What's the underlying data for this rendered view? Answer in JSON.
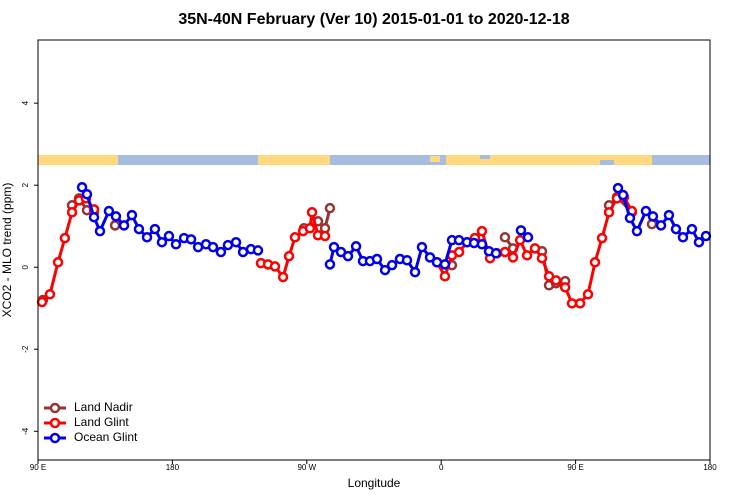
{
  "chart_data": {
    "type": "line",
    "title": "35N-40N February (Ver 10)   2015-01-01 to 2020-12-18",
    "xlabel": "Longitude",
    "ylabel": "XCO2 - MLO trend (ppm)",
    "xlim": [
      90,
      540
    ],
    "ylim": [
      -4.7,
      5.54
    ],
    "xticks": [
      {
        "value": 90,
        "label": "90 E"
      },
      {
        "value": 180,
        "label": "180"
      },
      {
        "value": 270,
        "label": "90 W"
      },
      {
        "value": 360,
        "label": "0"
      },
      {
        "value": 450,
        "label": "90 E"
      },
      {
        "value": 540,
        "label": "180"
      }
    ],
    "yticks": [
      -4,
      -2,
      0,
      2,
      4
    ],
    "legend": "bottom-left",
    "series": [
      {
        "name": "Land Nadir",
        "color": "#993333",
        "x": [
          93.3,
          null,
          112.8,
          117.5,
          122.8,
          127.5,
          null,
          141.6,
          null,
          268.1,
          277.5,
          282.2,
          285.5,
          null,
          367.2,
          null,
          382.6,
          null,
          402.7,
          408.1,
          null,
          427.5,
          432.2,
          436.9,
          443,
          null,
          472.4,
          477.7,
          487.7,
          null,
          501.1
        ],
        "values": [
          -0.8,
          null,
          1.51,
          1.68,
          1.39,
          1.34,
          null,
          1.02,
          null,
          0.95,
          1.12,
          0.95,
          1.44,
          null,
          0.05,
          null,
          0.71,
          null,
          0.73,
          0.46,
          null,
          0.39,
          -0.44,
          -0.39,
          -0.34,
          null,
          1.51,
          1.71,
          1.34,
          null,
          1.05
        ]
      },
      {
        "name": "Land Glint",
        "color": "#ff0000",
        "x": [
          92.7,
          98,
          103.4,
          108,
          112.8,
          117.5,
          122.1,
          127.5,
          null,
          239.3,
          244,
          248.7,
          254.1,
          258.1,
          262.1,
          267.5,
          272.1,
          273.5,
          277.5,
          282.2,
          null,
          357.2,
          362.5,
          367.2,
          372,
          377.3,
          382.6,
          387.3,
          392.7,
          397.4,
          402.7,
          408.1,
          412.8,
          417.5,
          422.8,
          427.5,
          432.2,
          436.9,
          443,
          447.6,
          453,
          458.3,
          463,
          467.7,
          472.4,
          477.7,
          482.4,
          487.7
        ],
        "values": [
          -0.85,
          -0.66,
          0.12,
          0.71,
          1.34,
          1.63,
          1.68,
          1.41,
          null,
          0.1,
          0.07,
          0.02,
          -0.24,
          0.27,
          0.73,
          0.88,
          0.95,
          1.34,
          0.78,
          0.76,
          null,
          0.12,
          -0.22,
          0.29,
          0.37,
          0.61,
          0.71,
          0.88,
          0.22,
          0.34,
          0.37,
          0.24,
          0.66,
          0.29,
          0.46,
          0.22,
          -0.22,
          -0.32,
          -0.49,
          -0.88,
          -0.88,
          -0.66,
          0.12,
          0.71,
          1.34,
          1.68,
          1.71,
          1.37
        ]
      },
      {
        "name": "Ocean Glint",
        "color": "#0000ee",
        "x": [
          119.5,
          122.8,
          127.5,
          131.5,
          137.5,
          142.2,
          147.6,
          152.9,
          157.6,
          163,
          168.3,
          173,
          177.7,
          182.4,
          187.8,
          192.5,
          197.2,
          202.5,
          207.2,
          212.5,
          217.2,
          222.6,
          227.3,
          232.6,
          237.3,
          null,
          285.5,
          288.2,
          292.9,
          297.6,
          303,
          307.6,
          312.3,
          317,
          322.4,
          327.1,
          332.4,
          337.1,
          342.5,
          347.1,
          352.5,
          357.2,
          362.5,
          367.2,
          371.9,
          377.3,
          382,
          387.3,
          392,
          396.7,
          null,
          413.4,
          418.1,
          null,
          478.4,
          481.8,
          486.4,
          491.1,
          497.1,
          501.8,
          507.2,
          512.5,
          517.2,
          521.9,
          527.9,
          532.6,
          537.3
        ],
        "values": [
          1.95,
          1.78,
          1.22,
          0.88,
          1.37,
          1.24,
          1.02,
          1.27,
          0.93,
          0.73,
          0.93,
          0.61,
          0.76,
          0.56,
          0.71,
          0.68,
          0.49,
          0.56,
          0.49,
          0.37,
          0.54,
          0.61,
          0.37,
          0.44,
          0.41,
          null,
          0.07,
          0.49,
          0.37,
          0.27,
          0.51,
          0.15,
          0.15,
          0.2,
          -0.07,
          0.05,
          0.2,
          0.17,
          -0.12,
          0.49,
          0.24,
          0.12,
          0.07,
          0.66,
          0.66,
          0.61,
          0.59,
          0.56,
          0.39,
          0.34,
          null,
          0.9,
          0.73,
          null,
          1.93,
          1.76,
          1.2,
          0.88,
          1.37,
          1.24,
          1.02,
          1.27,
          0.93,
          0.73,
          0.93,
          0.61,
          0.76
        ]
      }
    ]
  }
}
